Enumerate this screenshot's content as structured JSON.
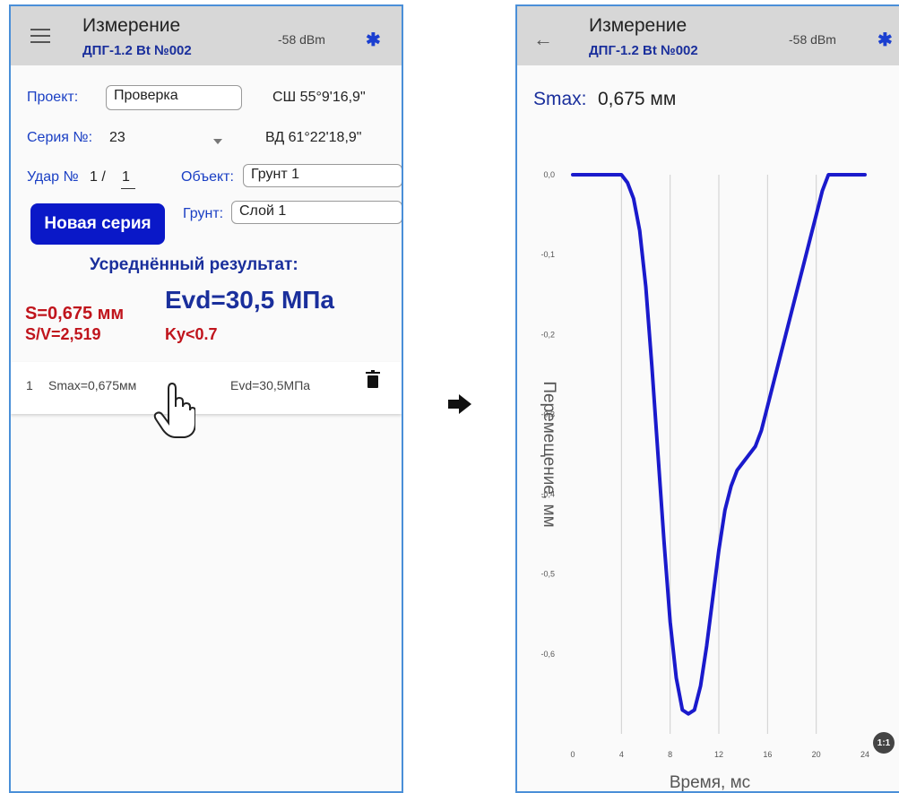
{
  "left": {
    "header": {
      "title": "Измерение",
      "device": "ДПГ-1.2 Bt №002",
      "signal": "-58 dBm",
      "bluetooth_icon": "bluetooth-icon",
      "menu_icon": "menu-icon"
    },
    "project": {
      "label": "Проект:",
      "value": "Проверка",
      "latitude": "СШ 55°9'16,9\""
    },
    "series": {
      "label": "Серия №:",
      "value": "23",
      "longitude": "ВД 61°22'18,9\""
    },
    "impact": {
      "label": "Удар №",
      "count": "1 /",
      "value": "1"
    },
    "object": {
      "label": "Объект:",
      "value": "Грунт 1"
    },
    "soil": {
      "label": "Грунт:",
      "value": "Слой 1"
    },
    "new_series_button": "Новая серия",
    "result": {
      "heading": "Усреднённый результат:",
      "s": "S=0,675 мм",
      "evd": "Evd=30,5 МПа",
      "sv": "S/V=2,519",
      "ky": "Ky<0.7"
    },
    "list": [
      {
        "index": "1",
        "smax": "Smax=0,675мм",
        "evd": "Evd=30,5МПа"
      }
    ],
    "accent": "#0a18c8",
    "result_color": "#c0141c"
  },
  "right": {
    "header": {
      "title": "Измерение",
      "device": "ДПГ-1.2 Bt №002",
      "signal": "-58 dBm",
      "back_icon": "back-arrow-icon",
      "bluetooth_icon": "bluetooth-icon"
    },
    "smax": {
      "label": "Smax:",
      "value": "0,675 мм"
    },
    "zoom_label": "1:1"
  },
  "chart_data": {
    "type": "line",
    "xlabel": "Время, мс",
    "ylabel": "Перемещение, мм",
    "xlim": [
      0,
      24
    ],
    "ylim": [
      -0.7,
      0.0
    ],
    "x_ticks": [
      "0",
      "4",
      "8",
      "12",
      "16",
      "20",
      "24"
    ],
    "y_ticks": [
      "0,0",
      "-0,1",
      "-0,2",
      "-0,3",
      "-0,4",
      "-0,5",
      "-0,6"
    ],
    "series": [
      {
        "color": "#1a1acc",
        "x": [
          0,
          4,
          4.5,
          5,
          5.5,
          6,
          6.5,
          7,
          7.5,
          8,
          8.5,
          9,
          9.5,
          10,
          10.5,
          11,
          11.5,
          12,
          12.5,
          13,
          13.5,
          14,
          14.5,
          15,
          15.5,
          16,
          16.5,
          17,
          17.5,
          18,
          18.5,
          19,
          19.5,
          20,
          20.5,
          21,
          24
        ],
        "y": [
          0,
          0,
          -0.01,
          -0.03,
          -0.07,
          -0.14,
          -0.24,
          -0.35,
          -0.46,
          -0.56,
          -0.63,
          -0.67,
          -0.675,
          -0.67,
          -0.64,
          -0.59,
          -0.53,
          -0.47,
          -0.42,
          -0.39,
          -0.37,
          -0.36,
          -0.35,
          -0.34,
          -0.32,
          -0.29,
          -0.26,
          -0.23,
          -0.2,
          -0.17,
          -0.14,
          -0.11,
          -0.08,
          -0.05,
          -0.02,
          0,
          0
        ]
      }
    ]
  }
}
